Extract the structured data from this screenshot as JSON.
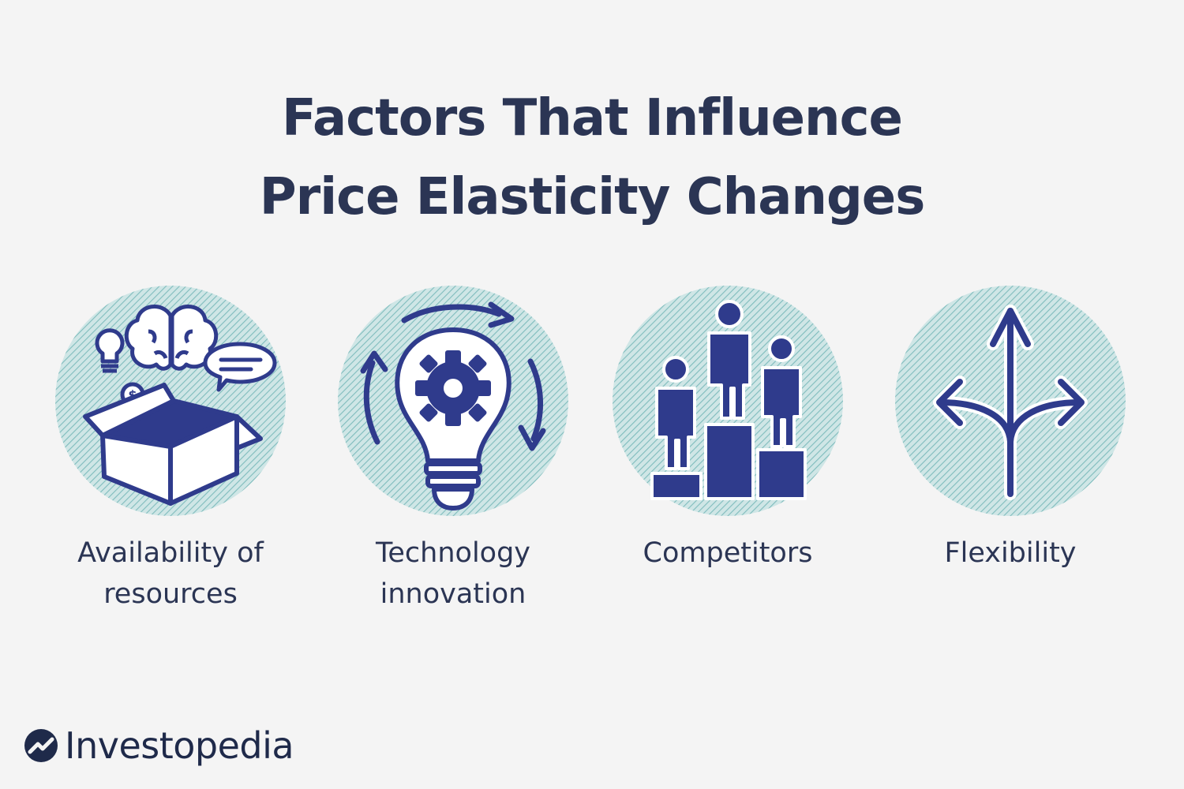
{
  "title": {
    "line1": "Factors That Influence",
    "line2": "Price Elasticity Changes"
  },
  "colors": {
    "background": "#f4f4f4",
    "navy": "#2b3554",
    "icon_blue": "#2f3b8c",
    "circle_teal": "#9fcfcf"
  },
  "factors": [
    {
      "label": "Availability of resources",
      "icon": "open-box-ideas-icon"
    },
    {
      "label": "Technology innovation",
      "icon": "lightbulb-gear-icon"
    },
    {
      "label": "Competitors",
      "icon": "podium-people-icon"
    },
    {
      "label": "Flexibility",
      "icon": "split-arrows-icon"
    }
  ],
  "logo": {
    "text": "Investopedia"
  }
}
